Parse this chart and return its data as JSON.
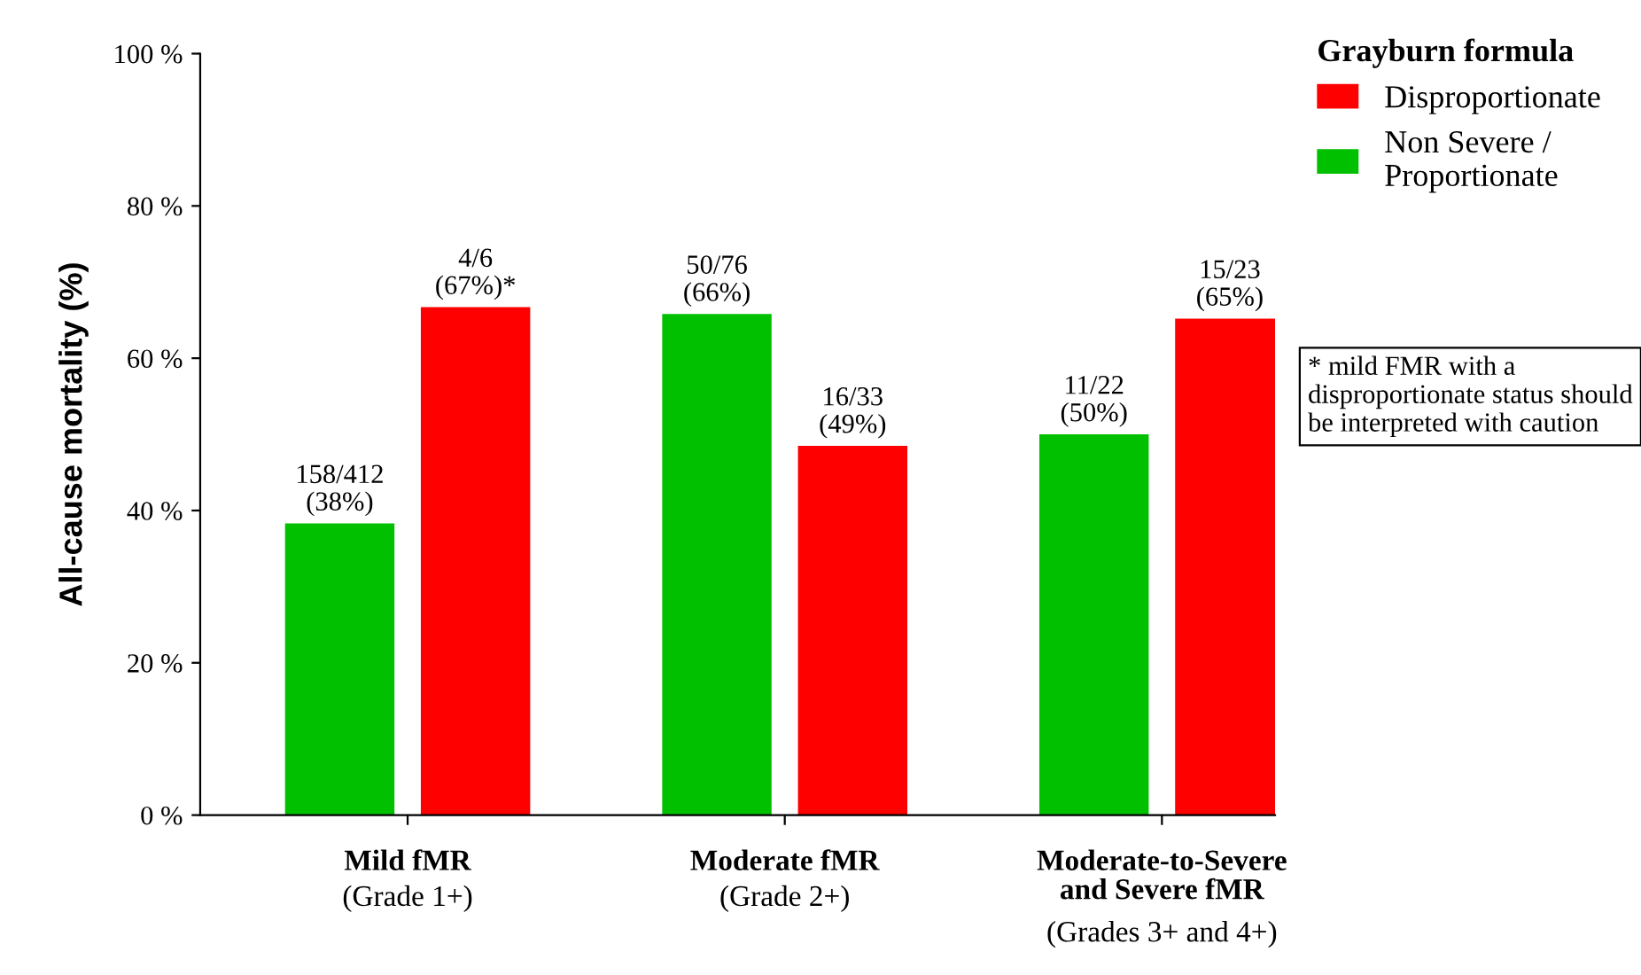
{
  "chart_data": {
    "type": "bar",
    "ylabel": "All-cause mortality (%)",
    "legend_title": "Grayburn formula",
    "legend": "top right",
    "categories": [
      "Mild fMR\n(Grade 1+)",
      "Moderate fMR\n(Grade 2+)",
      "Moderate-to-Severe\nand Severe fMR\n(Grades 3+ and 4+)"
    ],
    "series": [
      {
        "name": "Non Severe /\nProportionate",
        "color": "#00c000",
        "values": [
          38.3,
          65.8,
          50.0
        ],
        "value_labels": [
          "158/412\n(38%)",
          "50/76\n(66%)",
          "11/22\n(50%)"
        ]
      },
      {
        "name": "Disproportionate",
        "color": "#ff0000",
        "values": [
          66.7,
          48.5,
          65.2
        ],
        "value_labels": [
          "4/6\n(67%)*",
          "16/33\n(49%)",
          "15/23\n(65%)"
        ]
      }
    ],
    "ylim": [
      0,
      100
    ],
    "yticks": [
      {
        "value": 0,
        "label": "0 %"
      },
      {
        "value": 20,
        "label": "20 %"
      },
      {
        "value": 40,
        "label": "40 %"
      },
      {
        "value": 60,
        "label": "60 %"
      },
      {
        "value": 80,
        "label": "80 %"
      },
      {
        "value": 100,
        "label": "100 %"
      }
    ],
    "grid": false,
    "annotations": [
      "* mild FMR with a disproportionate status should be interpreted with caution"
    ]
  }
}
